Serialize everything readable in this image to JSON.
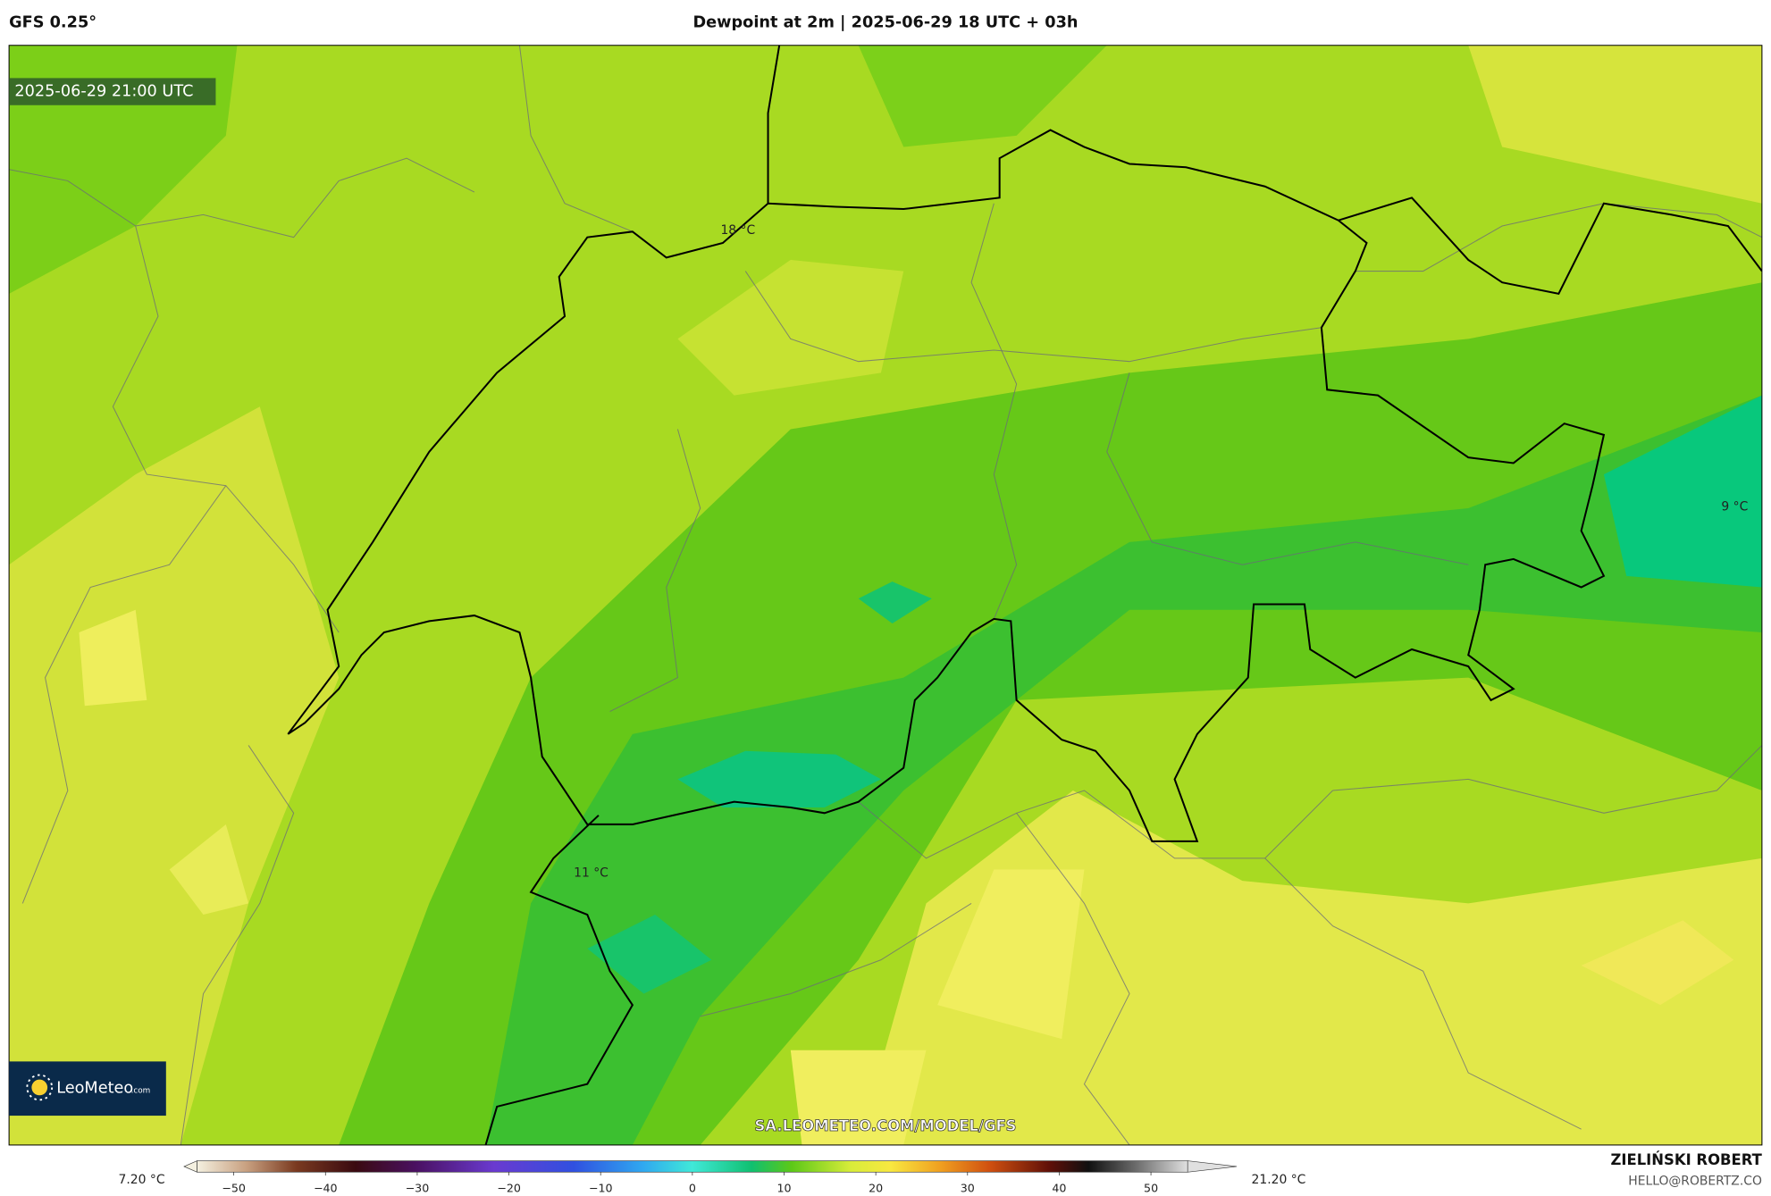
{
  "header": {
    "model": "GFS 0.25°",
    "title": "Dewpoint at 2m | 2025-06-29 18 UTC + 03h"
  },
  "map": {
    "valid_time": "2025-06-29 21:00 UTC",
    "labels": [
      "18 °C",
      "9 °C",
      "11 °C"
    ],
    "watermark": "SA.LEOMETEO.COM/MODEL/GFS",
    "logo": "LeoMeteo",
    "logo_suffix": ".com"
  },
  "colorbar": {
    "min_label": "7.20 °C",
    "max_label": "21.20 °C",
    "clim": [
      -54,
      54
    ],
    "ticks": [
      {
        "value": -50,
        "label": "−50"
      },
      {
        "value": -40,
        "label": "−40"
      },
      {
        "value": -30,
        "label": "−30"
      },
      {
        "value": -20,
        "label": "−20"
      },
      {
        "value": -10,
        "label": "−10"
      },
      0,
      10,
      20,
      30,
      40,
      50
    ]
  },
  "footer": {
    "author": "ZIELIŃSKI ROBERT",
    "email": "HELLO@ROBERTZ.CO"
  }
}
